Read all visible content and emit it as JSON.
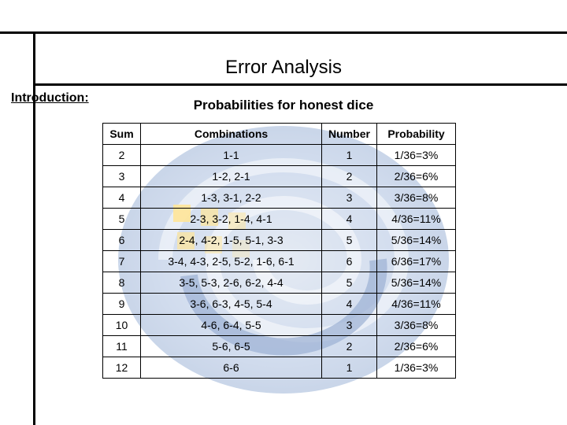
{
  "page": {
    "title": "Error Analysis",
    "intro_label": "Introduction:",
    "table_title": "Probabilities for honest dice"
  },
  "swirl": {
    "colors": [
      "#6a8ec8",
      "#3a64a8",
      "#a8bbd8",
      "#ffcc33",
      "#e8edf5"
    ]
  },
  "table": {
    "columns": [
      "Sum",
      "Combinations",
      "Number",
      "Probability"
    ],
    "rows": [
      [
        "2",
        "1-1",
        "1",
        "1/36=3%"
      ],
      [
        "3",
        "1-2, 2-1",
        "2",
        "2/36=6%"
      ],
      [
        "4",
        "1-3, 3-1, 2-2",
        "3",
        "3/36=8%"
      ],
      [
        "5",
        "2-3, 3-2, 1-4, 4-1",
        "4",
        "4/36=11%"
      ],
      [
        "6",
        "2-4, 4-2, 1-5, 5-1, 3-3",
        "5",
        "5/36=14%"
      ],
      [
        "7",
        "3-4, 4-3, 2-5, 5-2, 1-6, 6-1",
        "6",
        "6/36=17%"
      ],
      [
        "8",
        "3-5, 5-3, 2-6, 6-2, 4-4",
        "5",
        "5/36=14%"
      ],
      [
        "9",
        "3-6, 6-3, 4-5, 5-4",
        "4",
        "4/36=11%"
      ],
      [
        "10",
        "4-6, 6-4, 5-5",
        "3",
        "3/36=8%"
      ],
      [
        "11",
        "5-6, 6-5",
        "2",
        "2/36=6%"
      ],
      [
        "12",
        "6-6",
        "1",
        "1/36=3%"
      ]
    ]
  }
}
